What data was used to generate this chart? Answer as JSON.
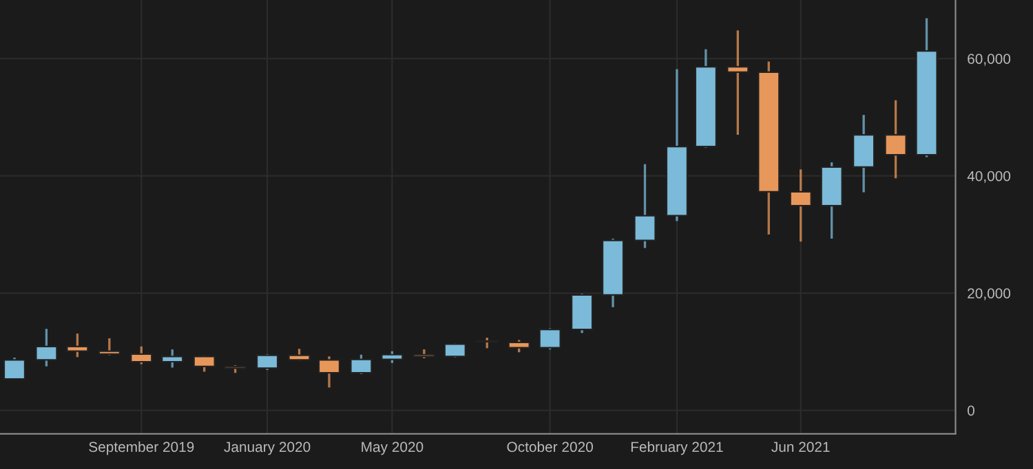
{
  "chart_data": {
    "type": "candlestick",
    "x": [
      "2019-05",
      "2019-06",
      "2019-07",
      "2019-08",
      "2019-09",
      "2019-10",
      "2019-11",
      "2019-12",
      "2020-01",
      "2020-02",
      "2020-03",
      "2020-04",
      "2020-05",
      "2020-06",
      "2020-07",
      "2020-08",
      "2020-09",
      "2020-10",
      "2020-11",
      "2020-12",
      "2021-01",
      "2021-02",
      "2021-03",
      "2021-04",
      "2021-05",
      "2021-06",
      "2021-07",
      "2021-08",
      "2021-09",
      "2021-10"
    ],
    "ohlc": [
      [
        5350,
        9000,
        5300,
        8600
      ],
      [
        8600,
        13900,
        7500,
        10900
      ],
      [
        10900,
        13100,
        9100,
        10100
      ],
      [
        10100,
        12300,
        9400,
        9600
      ],
      [
        9600,
        10900,
        7900,
        8300
      ],
      [
        8300,
        10400,
        7300,
        9200
      ],
      [
        9200,
        9300,
        6600,
        7500
      ],
      [
        7500,
        7700,
        6400,
        7200
      ],
      [
        7200,
        9600,
        6900,
        9400
      ],
      [
        9400,
        10500,
        8500,
        8600
      ],
      [
        8600,
        9200,
        3900,
        6400
      ],
      [
        6400,
        9500,
        6200,
        8700
      ],
      [
        8700,
        10100,
        8100,
        9500
      ],
      [
        9500,
        10400,
        8900,
        9200
      ],
      [
        9200,
        11400,
        9000,
        11300
      ],
      [
        11800,
        12400,
        10600,
        11700
      ],
      [
        11600,
        12000,
        9900,
        10700
      ],
      [
        10700,
        14000,
        10400,
        13800
      ],
      [
        13800,
        19900,
        13200,
        19700
      ],
      [
        19700,
        29300,
        17600,
        29000
      ],
      [
        29000,
        42000,
        27700,
        33200
      ],
      [
        33200,
        58200,
        32300,
        45000
      ],
      [
        45000,
        61600,
        44800,
        58600
      ],
      [
        58600,
        64800,
        47000,
        57700
      ],
      [
        57700,
        59500,
        30000,
        37300
      ],
      [
        37300,
        41100,
        28800,
        34900
      ],
      [
        34900,
        42300,
        29300,
        41500
      ],
      [
        41500,
        50400,
        37200,
        47000
      ],
      [
        47000,
        52900,
        39600,
        43600
      ],
      [
        43600,
        66900,
        43200,
        61300
      ]
    ],
    "colors": [
      "#7bbad8",
      "#7bbad8",
      "#e8975a",
      "#e8975a",
      "#e8975a",
      "#7bbad8",
      "#e8975a",
      "#e8975a",
      "#7bbad8",
      "#e8975a",
      "#e8975a",
      "#7bbad8",
      "#7bbad8",
      "#e8975a",
      "#7bbad8",
      "#e8975a",
      "#e8975a",
      "#7bbad8",
      "#7bbad8",
      "#7bbad8",
      "#7bbad8",
      "#7bbad8",
      "#7bbad8",
      "#e8975a",
      "#e8975a",
      "#e8975a",
      "#7bbad8",
      "#7bbad8",
      "#e8975a",
      "#7bbad8"
    ],
    "xlim": [
      "2019-04-17",
      "2021-10-29"
    ],
    "xticks": [
      {
        "value": "2019-09",
        "label": "September 2019"
      },
      {
        "value": "2020-01",
        "label": "January 2020"
      },
      {
        "value": "2020-05",
        "label": "May 2020"
      },
      {
        "value": "2020-10",
        "label": "October 2020"
      },
      {
        "value": "2021-02",
        "label": "February 2021"
      },
      {
        "value": "2021-06",
        "label": "Jun 2021"
      }
    ],
    "ylim": [
      -4000,
      70000
    ],
    "yticks": [
      0,
      {
        "value": 20000,
        "label": "20,000"
      },
      {
        "value": 40000,
        "label": "40,000"
      },
      {
        "value": 60000,
        "label": "60,000"
      }
    ],
    "grid": true
  }
}
